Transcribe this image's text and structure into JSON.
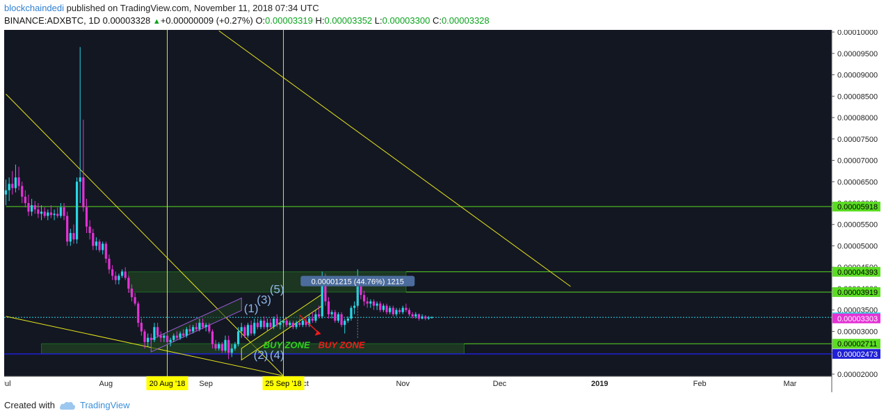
{
  "header": {
    "author": "blockchaindedi",
    "published": " published on TradingView.com, November 11, 2018 07:34 UTC",
    "symbol": "BINANCE:ADXBTC, 1D",
    "last": "0.00003328",
    "arrow": "▲",
    "change": "+0.00000009 (+0.27%)",
    "o_label": "O:",
    "o": "0.00003319",
    "h_label": "H:",
    "h": "0.00003352",
    "l_label": "L:",
    "l": "0.00003300",
    "c_label": "C:",
    "c": "0.00003328"
  },
  "footer": {
    "created_with": "Created with",
    "brand": "TradingView"
  },
  "colors": {
    "background": "#131722",
    "up": "#29d7e6",
    "down": "#e432d6",
    "trendline": "#e6e61a",
    "level": "#5bdc23",
    "zone": "#1e3a22",
    "support": "#2020d8"
  },
  "chart_data": {
    "type": "candlestick",
    "ylim": [
      1.95e-05,
      0.0001005
    ],
    "y_ticks": [
      "0.00002000",
      "0.00002500",
      "0.00003000",
      "0.00003500",
      "0.00004000",
      "0.00004500",
      "0.00005000",
      "0.00005500",
      "0.00006000",
      "0.00006500",
      "0.00007000",
      "0.00007500",
      "0.00008000",
      "0.00008500",
      "0.00009000",
      "0.00009500",
      "0.00010000"
    ],
    "x_labels": [
      {
        "label": "Jul",
        "day": 0
      },
      {
        "label": "Aug",
        "day": 31
      },
      {
        "label": "Sep",
        "day": 62
      },
      {
        "label": "Oct",
        "day": 92
      },
      {
        "label": "Nov",
        "day": 123
      },
      {
        "label": "Dec",
        "day": 153
      },
      {
        "label": "2019",
        "day": 184
      },
      {
        "label": "Feb",
        "day": 215
      },
      {
        "label": "Mar",
        "day": 243
      }
    ],
    "date_markers": [
      {
        "label": "20 Aug '18",
        "day": 50
      },
      {
        "label": "25 Sep '18",
        "day": 86
      }
    ],
    "price_tags": [
      {
        "value": 5.918e-05,
        "label": "0.00005918",
        "bg": "#5bdc23",
        "fg": "#000000"
      },
      {
        "value": 4.393e-05,
        "label": "0.00004393",
        "bg": "#5bdc23",
        "fg": "#000000"
      },
      {
        "value": 3.919e-05,
        "label": "0.00003919",
        "bg": "#5bdc23",
        "fg": "#000000"
      },
      {
        "value": 3.328e-05,
        "label": "0.00003328",
        "bg": "#29d7e6",
        "fg": "#000000"
      },
      {
        "value": 3.303e-05,
        "label": "0.00003303",
        "bg": "#e432d6",
        "fg": "#ffffff"
      },
      {
        "value": 2.711e-05,
        "label": "0.00002711",
        "bg": "#5bdc23",
        "fg": "#000000"
      },
      {
        "value": 2.473e-05,
        "label": "0.00002473",
        "bg": "#2020d8",
        "fg": "#ffffff"
      }
    ],
    "horizontal_levels": [
      {
        "value": 5.918e-05,
        "from_day": 0
      },
      {
        "value": 4.393e-05,
        "from_day": 124
      },
      {
        "value": 3.919e-05,
        "from_day": 124
      },
      {
        "value": 2.711e-05,
        "from_day": 142
      }
    ],
    "current_price_line": 3.328e-05,
    "support_line": 2.473e-05,
    "zones": [
      {
        "from_day": 38,
        "to_day": 124,
        "low": 3.919e-05,
        "high": 4.393e-05
      },
      {
        "from_day": 11,
        "to_day": 142,
        "low": 2.473e-05,
        "high": 2.711e-05
      }
    ],
    "trendlines": [
      {
        "d1": 0,
        "v1": 8.55e-05,
        "d2": 86,
        "v2": 1.96e-05
      },
      {
        "d1": 0,
        "v1": 3.35e-05,
        "d2": 86,
        "v2": 1.96e-05
      },
      {
        "d1": 66,
        "v1": 0.0001003,
        "d2": 175,
        "v2": 4.05e-05
      }
    ],
    "channels": [
      {
        "p1": [
          45,
          2.52e-05
        ],
        "p2": [
          73,
          3.49e-05
        ],
        "width": 2.9e-06,
        "color": "#9b59d6"
      },
      {
        "p1": [
          73,
          2.33e-05
        ],
        "p2": [
          98,
          3.6e-05
        ],
        "width": 2.7e-06,
        "color": "#e6e61a"
      }
    ],
    "waves": [
      {
        "label": "(1)",
        "day": 76,
        "value": 3.45e-05
      },
      {
        "label": "(2)",
        "day": 79,
        "value": 2.36e-05
      },
      {
        "label": "(3)",
        "day": 80,
        "value": 3.65e-05
      },
      {
        "label": "(4)",
        "day": 84,
        "value": 2.36e-05
      },
      {
        "label": "(5)",
        "day": 84,
        "value": 3.89e-05
      }
    ],
    "buy_zones": [
      {
        "label": "BUY ZONE",
        "day": 87,
        "value": 2.61e-05,
        "color": "#2fd21c"
      },
      {
        "label": "BUY ZONE",
        "day": 104,
        "value": 2.61e-05,
        "color": "#ee1c1c"
      }
    ],
    "measure_label": {
      "text": "0.00001215 (44.76%) 1215",
      "day": 109,
      "value": 4.12e-05
    },
    "candles": [
      {
        "o": 6.2e-05,
        "h": 6.55e-05,
        "l": 5.95e-05,
        "c": 6.3e-05
      },
      {
        "o": 6.3e-05,
        "h": 6.6e-05,
        "l": 6.05e-05,
        "c": 6.45e-05
      },
      {
        "o": 6.45e-05,
        "h": 6.75e-05,
        "l": 6.2e-05,
        "c": 6.35e-05
      },
      {
        "o": 6.35e-05,
        "h": 6.9e-05,
        "l": 6.25e-05,
        "c": 6.6e-05
      },
      {
        "o": 6.6e-05,
        "h": 6.85e-05,
        "l": 6.3e-05,
        "c": 6.4e-05
      },
      {
        "o": 6.4e-05,
        "h": 6.5e-05,
        "l": 6e-05,
        "c": 6.15e-05
      },
      {
        "o": 6.15e-05,
        "h": 6.3e-05,
        "l": 5.9e-05,
        "c": 6e-05
      },
      {
        "o": 6e-05,
        "h": 6.2e-05,
        "l": 5.7e-05,
        "c": 5.8e-05
      },
      {
        "o": 5.8e-05,
        "h": 6.1e-05,
        "l": 5.7e-05,
        "c": 5.95e-05
      },
      {
        "o": 5.95e-05,
        "h": 6.05e-05,
        "l": 5.75e-05,
        "c": 5.85e-05
      },
      {
        "o": 5.85e-05,
        "h": 6e-05,
        "l": 5.65e-05,
        "c": 5.75e-05
      },
      {
        "o": 5.75e-05,
        "h": 5.95e-05,
        "l": 5.6e-05,
        "c": 5.8e-05
      },
      {
        "o": 5.8e-05,
        "h": 5.9e-05,
        "l": 5.65e-05,
        "c": 5.7e-05
      },
      {
        "o": 5.7e-05,
        "h": 5.85e-05,
        "l": 5.6e-05,
        "c": 5.78e-05
      },
      {
        "o": 5.78e-05,
        "h": 5.95e-05,
        "l": 5.65e-05,
        "c": 5.72e-05
      },
      {
        "o": 5.72e-05,
        "h": 5.85e-05,
        "l": 5.6e-05,
        "c": 5.75e-05
      },
      {
        "o": 5.75e-05,
        "h": 5.9e-05,
        "l": 5.65e-05,
        "c": 5.7e-05
      },
      {
        "o": 5.7e-05,
        "h": 6e-05,
        "l": 5.65e-05,
        "c": 5.9e-05
      },
      {
        "o": 5.9e-05,
        "h": 6e-05,
        "l": 5.6e-05,
        "c": 5.7e-05
      },
      {
        "o": 5.7e-05,
        "h": 5.8e-05,
        "l": 5e-05,
        "c": 5.1e-05
      },
      {
        "o": 5.1e-05,
        "h": 5.4e-05,
        "l": 5e-05,
        "c": 5.3e-05
      },
      {
        "o": 5.3e-05,
        "h": 5.5e-05,
        "l": 5.05e-05,
        "c": 5.15e-05
      },
      {
        "o": 5.15e-05,
        "h": 6.6e-05,
        "l": 5.05e-05,
        "c": 6.5e-05
      },
      {
        "o": 6.5e-05,
        "h": 9.65e-05,
        "l": 6e-05,
        "c": 6.6e-05
      },
      {
        "o": 6.6e-05,
        "h": 7.95e-05,
        "l": 5.8e-05,
        "c": 5.9e-05
      },
      {
        "o": 5.9e-05,
        "h": 6.1e-05,
        "l": 5.3e-05,
        "c": 5.45e-05
      },
      {
        "o": 5.45e-05,
        "h": 5.6e-05,
        "l": 5.15e-05,
        "c": 5.3e-05
      },
      {
        "o": 5.3e-05,
        "h": 5.4e-05,
        "l": 4.9e-05,
        "c": 5e-05
      },
      {
        "o": 5e-05,
        "h": 5.2e-05,
        "l": 4.9e-05,
        "c": 5.1e-05
      },
      {
        "o": 5.1e-05,
        "h": 5.15e-05,
        "l": 4.85e-05,
        "c": 4.9e-05
      },
      {
        "o": 4.9e-05,
        "h": 5.1e-05,
        "l": 4.8e-05,
        "c": 5.05e-05
      },
      {
        "o": 5.05e-05,
        "h": 5.1e-05,
        "l": 4.6e-05,
        "c": 4.7e-05
      },
      {
        "o": 4.7e-05,
        "h": 4.8e-05,
        "l": 4.35e-05,
        "c": 4.45e-05
      },
      {
        "o": 4.45e-05,
        "h": 4.55e-05,
        "l": 4.2e-05,
        "c": 4.3e-05
      },
      {
        "o": 4.3e-05,
        "h": 4.4e-05,
        "l": 4.1e-05,
        "c": 4.2e-05
      },
      {
        "o": 4.2e-05,
        "h": 4.35e-05,
        "l": 4.1e-05,
        "c": 4.3e-05
      },
      {
        "o": 4.3e-05,
        "h": 4.45e-05,
        "l": 4.25e-05,
        "c": 4.4e-05
      },
      {
        "o": 4.4e-05,
        "h": 4.5e-05,
        "l": 4.2e-05,
        "c": 4.25e-05
      },
      {
        "o": 4.25e-05,
        "h": 4.3e-05,
        "l": 3.9e-05,
        "c": 4e-05
      },
      {
        "o": 4e-05,
        "h": 4.1e-05,
        "l": 3.7e-05,
        "c": 3.8e-05
      },
      {
        "o": 3.8e-05,
        "h": 3.9e-05,
        "l": 3.6e-05,
        "c": 3.65e-05
      },
      {
        "o": 3.65e-05,
        "h": 3.7e-05,
        "l": 3.1e-05,
        "c": 3.2e-05
      },
      {
        "o": 3.2e-05,
        "h": 3.3e-05,
        "l": 2.9e-05,
        "c": 3e-05
      },
      {
        "o": 3e-05,
        "h": 3.05e-05,
        "l": 2.6e-05,
        "c": 2.75e-05
      },
      {
        "o": 2.75e-05,
        "h": 2.95e-05,
        "l": 2.65e-05,
        "c": 2.85e-05
      },
      {
        "o": 2.85e-05,
        "h": 2.95e-05,
        "l": 2.7e-05,
        "c": 2.8e-05
      },
      {
        "o": 2.8e-05,
        "h": 3.2e-05,
        "l": 2.75e-05,
        "c": 3.1e-05
      },
      {
        "o": 3.1e-05,
        "h": 3.2e-05,
        "l": 2.85e-05,
        "c": 2.9e-05
      },
      {
        "o": 2.9e-05,
        "h": 3e-05,
        "l": 2.75e-05,
        "c": 2.85e-05
      },
      {
        "o": 2.85e-05,
        "h": 2.95e-05,
        "l": 2.75e-05,
        "c": 2.9e-05
      },
      {
        "o": 2.9e-05,
        "h": 2.95e-05,
        "l": 2.7e-05,
        "c": 2.75e-05
      },
      {
        "o": 2.75e-05,
        "h": 2.85e-05,
        "l": 2.65e-05,
        "c": 2.8e-05
      },
      {
        "o": 2.8e-05,
        "h": 2.95e-05,
        "l": 2.75e-05,
        "c": 2.9e-05
      },
      {
        "o": 2.9e-05,
        "h": 3e-05,
        "l": 2.8e-05,
        "c": 2.85e-05
      },
      {
        "o": 2.85e-05,
        "h": 3e-05,
        "l": 2.8e-05,
        "c": 2.95e-05
      },
      {
        "o": 2.95e-05,
        "h": 3.05e-05,
        "l": 2.85e-05,
        "c": 2.9e-05
      },
      {
        "o": 2.9e-05,
        "h": 3.1e-05,
        "l": 2.85e-05,
        "c": 3.05e-05
      },
      {
        "o": 3.05e-05,
        "h": 3.15e-05,
        "l": 2.95e-05,
        "c": 3e-05
      },
      {
        "o": 3e-05,
        "h": 3.15e-05,
        "l": 2.95e-05,
        "c": 3.1e-05
      },
      {
        "o": 3.1e-05,
        "h": 3.2e-05,
        "l": 3e-05,
        "c": 3.05e-05
      },
      {
        "o": 3.05e-05,
        "h": 3.3e-05,
        "l": 3e-05,
        "c": 3.2e-05
      },
      {
        "o": 3.2e-05,
        "h": 3.3e-05,
        "l": 3.05e-05,
        "c": 3.1e-05
      },
      {
        "o": 3.1e-05,
        "h": 3.2e-05,
        "l": 3e-05,
        "c": 3.15e-05
      },
      {
        "o": 3.15e-05,
        "h": 3.2e-05,
        "l": 2.95e-05,
        "c": 3e-05
      },
      {
        "o": 3e-05,
        "h": 3.05e-05,
        "l": 2.6e-05,
        "c": 2.7e-05
      },
      {
        "o": 2.7e-05,
        "h": 2.8e-05,
        "l": 2.55e-05,
        "c": 2.6e-05
      },
      {
        "o": 2.6e-05,
        "h": 2.75e-05,
        "l": 2.55e-05,
        "c": 2.7e-05
      },
      {
        "o": 2.7e-05,
        "h": 2.75e-05,
        "l": 2.5e-05,
        "c": 2.55e-05
      },
      {
        "o": 2.55e-05,
        "h": 2.9e-05,
        "l": 2.5e-05,
        "c": 2.8e-05
      },
      {
        "o": 2.8e-05,
        "h": 2.9e-05,
        "l": 2.35e-05,
        "c": 2.5e-05
      },
      {
        "o": 2.5e-05,
        "h": 2.7e-05,
        "l": 2.4e-05,
        "c": 2.6e-05
      },
      {
        "o": 2.6e-05,
        "h": 2.75e-05,
        "l": 2.55e-05,
        "c": 2.7e-05
      },
      {
        "o": 2.7e-05,
        "h": 3.1e-05,
        "l": 2.65e-05,
        "c": 3e-05
      },
      {
        "o": 3e-05,
        "h": 3.2e-05,
        "l": 2.85e-05,
        "c": 3.1e-05
      },
      {
        "o": 3.1e-05,
        "h": 3.15e-05,
        "l": 2.85e-05,
        "c": 2.9e-05
      },
      {
        "o": 2.9e-05,
        "h": 3.2e-05,
        "l": 2.85e-05,
        "c": 3.15e-05
      },
      {
        "o": 3.15e-05,
        "h": 3.25e-05,
        "l": 2.9e-05,
        "c": 2.95e-05
      },
      {
        "o": 2.95e-05,
        "h": 3.3e-05,
        "l": 2.9e-05,
        "c": 3.2e-05
      },
      {
        "o": 3.2e-05,
        "h": 3.3e-05,
        "l": 3.05e-05,
        "c": 3.1e-05
      },
      {
        "o": 3.1e-05,
        "h": 3.3e-05,
        "l": 3.05e-05,
        "c": 3.25e-05
      },
      {
        "o": 3.25e-05,
        "h": 3.35e-05,
        "l": 3.05e-05,
        "c": 3.1e-05
      },
      {
        "o": 3.1e-05,
        "h": 3.3e-05,
        "l": 3e-05,
        "c": 3.2e-05
      },
      {
        "o": 3.2e-05,
        "h": 3.3e-05,
        "l": 3.05e-05,
        "c": 3.1e-05
      },
      {
        "o": 3.1e-05,
        "h": 3.35e-05,
        "l": 3.05e-05,
        "c": 3.3e-05
      },
      {
        "o": 3.3e-05,
        "h": 3.4e-05,
        "l": 3.1e-05,
        "c": 3.15e-05
      },
      {
        "o": 3.15e-05,
        "h": 3.3e-05,
        "l": 3.05e-05,
        "c": 3.2e-05
      },
      {
        "o": 3.2e-05,
        "h": 3.3e-05,
        "l": 3.1e-05,
        "c": 3.25e-05
      },
      {
        "o": 3.25e-05,
        "h": 3.3e-05,
        "l": 3.1e-05,
        "c": 3.15e-05
      },
      {
        "o": 3.15e-05,
        "h": 3.25e-05,
        "l": 3.1e-05,
        "c": 3.2e-05
      },
      {
        "o": 3.2e-05,
        "h": 3.25e-05,
        "l": 3.05e-05,
        "c": 3.1e-05
      },
      {
        "o": 3.1e-05,
        "h": 3.25e-05,
        "l": 3.05e-05,
        "c": 3.2e-05
      },
      {
        "o": 3.2e-05,
        "h": 3.3e-05,
        "l": 3.1e-05,
        "c": 3.15e-05
      },
      {
        "o": 3.15e-05,
        "h": 3.3e-05,
        "l": 3.1e-05,
        "c": 3.25e-05
      },
      {
        "o": 3.25e-05,
        "h": 3.35e-05,
        "l": 3.1e-05,
        "c": 3.15e-05
      },
      {
        "o": 3.15e-05,
        "h": 3.4e-05,
        "l": 3.1e-05,
        "c": 3.3e-05
      },
      {
        "o": 3.3e-05,
        "h": 3.45e-05,
        "l": 3.2e-05,
        "c": 3.25e-05
      },
      {
        "o": 3.25e-05,
        "h": 3.5e-05,
        "l": 3.2e-05,
        "c": 3.4e-05
      },
      {
        "o": 3.4e-05,
        "h": 3.6e-05,
        "l": 3.3e-05,
        "c": 3.35e-05
      },
      {
        "o": 3.35e-05,
        "h": 4.4e-05,
        "l": 3.3e-05,
        "c": 4.25e-05
      },
      {
        "o": 4.25e-05,
        "h": 4.35e-05,
        "l": 3.6e-05,
        "c": 3.7e-05
      },
      {
        "o": 3.7e-05,
        "h": 3.8e-05,
        "l": 3.3e-05,
        "c": 3.4e-05
      },
      {
        "o": 3.4e-05,
        "h": 3.5e-05,
        "l": 3.3e-05,
        "c": 3.45e-05
      },
      {
        "o": 3.45e-05,
        "h": 3.5e-05,
        "l": 3.2e-05,
        "c": 3.25e-05
      },
      {
        "o": 3.25e-05,
        "h": 3.45e-05,
        "l": 3.2e-05,
        "c": 3.4e-05
      },
      {
        "o": 3.4e-05,
        "h": 3.45e-05,
        "l": 3.1e-05,
        "c": 3.15e-05
      },
      {
        "o": 3.15e-05,
        "h": 3.3e-05,
        "l": 2.95e-05,
        "c": 3.25e-05
      },
      {
        "o": 3.25e-05,
        "h": 3.35e-05,
        "l": 3.2e-05,
        "c": 3.3e-05
      },
      {
        "o": 3.3e-05,
        "h": 3.6e-05,
        "l": 3.25e-05,
        "c": 3.55e-05
      },
      {
        "o": 3.55e-05,
        "h": 3.7e-05,
        "l": 3.4e-05,
        "c": 3.6e-05
      },
      {
        "o": 3.6e-05,
        "h": 4.45e-05,
        "l": 3.55e-05,
        "c": 4.05e-05
      },
      {
        "o": 4.05e-05,
        "h": 4.15e-05,
        "l": 3.75e-05,
        "c": 3.85e-05
      },
      {
        "o": 3.85e-05,
        "h": 3.95e-05,
        "l": 3.6e-05,
        "c": 3.7e-05
      },
      {
        "o": 3.7e-05,
        "h": 3.8e-05,
        "l": 3.55e-05,
        "c": 3.65e-05
      },
      {
        "o": 3.65e-05,
        "h": 3.75e-05,
        "l": 3.55e-05,
        "c": 3.7e-05
      },
      {
        "o": 3.7e-05,
        "h": 3.75e-05,
        "l": 3.5e-05,
        "c": 3.6e-05
      },
      {
        "o": 3.6e-05,
        "h": 3.7e-05,
        "l": 3.5e-05,
        "c": 3.65e-05
      },
      {
        "o": 3.65e-05,
        "h": 3.7e-05,
        "l": 3.45e-05,
        "c": 3.5e-05
      },
      {
        "o": 3.5e-05,
        "h": 3.65e-05,
        "l": 3.45e-05,
        "c": 3.6e-05
      },
      {
        "o": 3.6e-05,
        "h": 3.65e-05,
        "l": 3.4e-05,
        "c": 3.45e-05
      },
      {
        "o": 3.45e-05,
        "h": 3.6e-05,
        "l": 3.4e-05,
        "c": 3.55e-05
      },
      {
        "o": 3.55e-05,
        "h": 3.6e-05,
        "l": 3.35e-05,
        "c": 3.4e-05
      },
      {
        "o": 3.4e-05,
        "h": 3.55e-05,
        "l": 3.35e-05,
        "c": 3.5e-05
      },
      {
        "o": 3.5e-05,
        "h": 3.55e-05,
        "l": 3.4e-05,
        "c": 3.45e-05
      },
      {
        "o": 3.45e-05,
        "h": 3.6e-05,
        "l": 3.4e-05,
        "c": 3.55e-05
      },
      {
        "o": 3.55e-05,
        "h": 3.65e-05,
        "l": 3.45e-05,
        "c": 3.5e-05
      },
      {
        "o": 3.5e-05,
        "h": 3.55e-05,
        "l": 3.35e-05,
        "c": 3.4e-05
      },
      {
        "o": 3.4e-05,
        "h": 3.45e-05,
        "l": 3.3e-05,
        "c": 3.35e-05
      },
      {
        "o": 3.35e-05,
        "h": 3.45e-05,
        "l": 3.3e-05,
        "c": 3.4e-05
      },
      {
        "o": 3.4e-05,
        "h": 3.42e-05,
        "l": 3.25e-05,
        "c": 3.3e-05
      },
      {
        "o": 3.3e-05,
        "h": 3.4e-05,
        "l": 3.28e-05,
        "c": 3.35e-05
      },
      {
        "o": 3.35e-05,
        "h": 3.38e-05,
        "l": 3.26e-05,
        "c": 3.3e-05
      },
      {
        "o": 3.3e-05,
        "h": 3.36e-05,
        "l": 3.27e-05,
        "c": 3.32e-05
      },
      {
        "o": 3.319e-05,
        "h": 3.352e-05,
        "l": 3.3e-05,
        "c": 3.328e-05
      }
    ]
  }
}
